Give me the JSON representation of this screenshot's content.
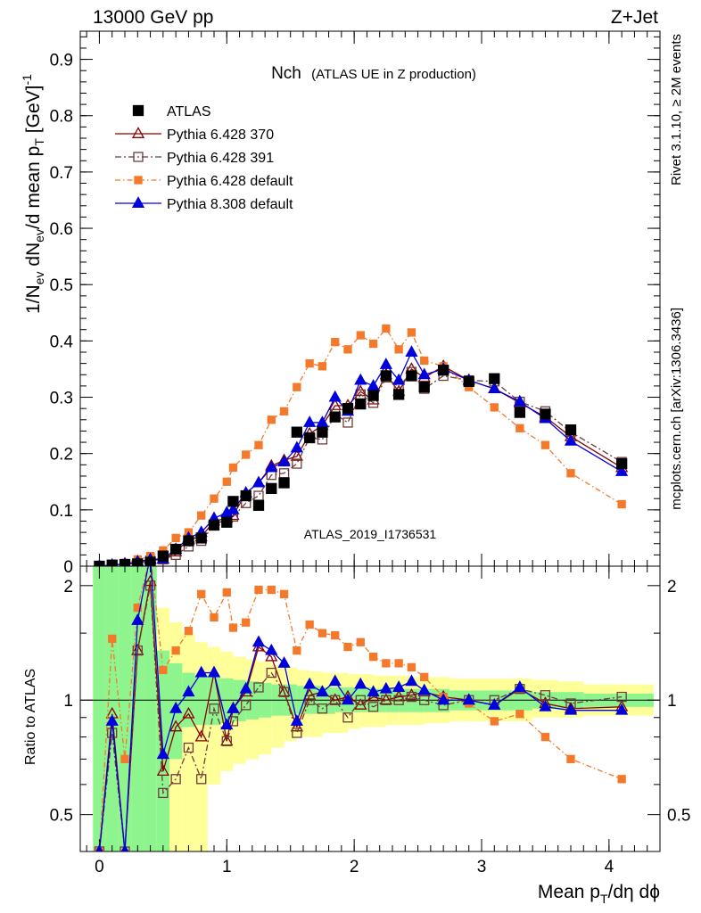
{
  "header": {
    "left": "13000 GeV pp",
    "right": "Z+Jet"
  },
  "side_labels": {
    "rivet": "Rivet 3.1.10, ≥ 2M events",
    "mcplots": "mcplots.cern.ch [arXiv:1306.3436]"
  },
  "colors": {
    "atlas": "#000000",
    "p370": "#8b0000",
    "p391": "#6e3b3b",
    "p6def": "#f4792b",
    "p8def": "#0000dd",
    "band_green": "#8ef58e",
    "band_yellow": "#ffff99",
    "analysis_label": "#999999"
  },
  "chart_data": [
    {
      "type": "line",
      "title": "Nch",
      "subtitle": "(ATLAS UE in Z production)",
      "analysis_label": "ATLAS_2019_I1736531",
      "ylabel": "1/N_ev dN_ev/d mean p_T [GeV]^-1",
      "xlim": [
        -0.15,
        4.4
      ],
      "ylim": [
        0,
        0.95
      ],
      "yticks": [
        0,
        0.1,
        0.2,
        0.3,
        0.4,
        0.5,
        0.6,
        0.7,
        0.8,
        0.9
      ],
      "ytick_labels": [
        "0",
        "0.1",
        "0.2",
        "0.3",
        "0.4",
        "0.5",
        "0.6",
        "0.7",
        "0.8",
        "0.9"
      ],
      "legend_position": "top-left",
      "x": [
        0.0,
        0.1,
        0.2,
        0.3,
        0.4,
        0.5,
        0.6,
        0.7,
        0.8,
        0.9,
        1.0,
        1.05,
        1.15,
        1.25,
        1.35,
        1.45,
        1.55,
        1.65,
        1.75,
        1.85,
        1.95,
        2.05,
        2.15,
        2.25,
        2.35,
        2.45,
        2.55,
        2.7,
        2.9,
        3.1,
        3.3,
        3.5,
        3.7,
        4.1
      ],
      "series": [
        {
          "name": "ATLAS",
          "marker": "filled-square",
          "color": "#000000",
          "values": [
            0.0,
            0.002,
            0.003,
            0.004,
            0.007,
            0.018,
            0.03,
            0.045,
            0.05,
            0.073,
            0.078,
            0.115,
            0.125,
            0.108,
            0.138,
            0.148,
            0.238,
            0.228,
            0.238,
            0.265,
            0.28,
            0.288,
            0.303,
            0.338,
            0.305,
            0.338,
            0.318,
            0.348,
            0.328,
            0.333,
            0.273,
            0.27,
            0.242,
            0.182
          ]
        },
        {
          "name": "Pythia 6.428 370",
          "marker": "open-triangle",
          "color": "#8b0000",
          "values": [
            0.0,
            0.002,
            0.004,
            0.008,
            0.012,
            0.012,
            0.025,
            0.048,
            0.052,
            0.08,
            0.085,
            0.09,
            0.13,
            0.148,
            0.178,
            0.188,
            0.195,
            0.235,
            0.25,
            0.285,
            0.285,
            0.31,
            0.295,
            0.34,
            0.31,
            0.35,
            0.335,
            0.355,
            0.33,
            0.315,
            0.29,
            0.265,
            0.23,
            0.175
          ]
        },
        {
          "name": "Pythia 6.428 391",
          "marker": "open-square",
          "color": "#6e3b3b",
          "values": [
            0.0,
            0.002,
            0.003,
            0.005,
            0.01,
            0.012,
            0.02,
            0.035,
            0.045,
            0.072,
            0.085,
            0.088,
            0.112,
            0.125,
            0.162,
            0.165,
            0.182,
            0.228,
            0.225,
            0.27,
            0.255,
            0.305,
            0.29,
            0.335,
            0.318,
            0.345,
            0.315,
            0.338,
            0.33,
            0.328,
            0.292,
            0.275,
            0.238,
            0.185
          ]
        },
        {
          "name": "Pythia 6.428 default",
          "marker": "filled-square-small",
          "color": "#f4792b",
          "values": [
            0.0,
            0.003,
            0.006,
            0.012,
            0.018,
            0.028,
            0.05,
            0.06,
            0.09,
            0.12,
            0.15,
            0.175,
            0.198,
            0.215,
            0.26,
            0.275,
            0.318,
            0.36,
            0.355,
            0.398,
            0.385,
            0.41,
            0.395,
            0.422,
            0.385,
            0.415,
            0.365,
            0.355,
            0.318,
            0.282,
            0.245,
            0.215,
            0.165,
            0.11
          ]
        },
        {
          "name": "Pythia 8.308 default",
          "marker": "filled-triangle",
          "color": "#0000dd",
          "values": [
            0.0,
            0.002,
            0.004,
            0.008,
            0.012,
            0.013,
            0.03,
            0.05,
            0.06,
            0.085,
            0.095,
            0.1,
            0.13,
            0.148,
            0.175,
            0.185,
            0.21,
            0.255,
            0.255,
            0.3,
            0.275,
            0.33,
            0.32,
            0.358,
            0.33,
            0.38,
            0.34,
            0.35,
            0.33,
            0.315,
            0.292,
            0.262,
            0.222,
            0.168
          ]
        }
      ]
    },
    {
      "type": "line",
      "ylabel": "Ratio to ATLAS",
      "xlabel": "Mean p_T/dη dϕ",
      "scale": "log",
      "xlim": [
        -0.15,
        4.4
      ],
      "ylim": [
        0.4,
        2.25
      ],
      "yticks": [
        0.5,
        1,
        2
      ],
      "ytick_labels": [
        "0.5",
        "1",
        "2"
      ],
      "xticks": [
        0,
        1,
        2,
        3,
        4
      ],
      "xtick_labels": [
        "0",
        "1",
        "2",
        "3",
        "4"
      ],
      "reference_line": 1,
      "x": [
        0.0,
        0.1,
        0.2,
        0.3,
        0.4,
        0.5,
        0.6,
        0.7,
        0.8,
        0.9,
        1.0,
        1.05,
        1.15,
        1.25,
        1.35,
        1.45,
        1.55,
        1.65,
        1.75,
        1.85,
        1.95,
        2.05,
        2.15,
        2.25,
        2.35,
        2.45,
        2.55,
        2.7,
        2.9,
        3.1,
        3.3,
        3.5,
        3.7,
        4.1
      ],
      "band_edges": [
        -0.05,
        0.05,
        0.15,
        0.25,
        0.35,
        0.45,
        0.55,
        0.65,
        0.75,
        0.85,
        0.95,
        1.05,
        1.15,
        1.25,
        1.35,
        1.45,
        1.55,
        1.65,
        1.75,
        1.85,
        1.95,
        2.05,
        2.15,
        2.25,
        2.35,
        2.45,
        2.55,
        2.65,
        2.75,
        3.0,
        3.2,
        3.4,
        3.6,
        3.8,
        4.35
      ],
      "band_green_lo": [
        0.4,
        0.4,
        0.4,
        0.4,
        0.4,
        0.4,
        0.7,
        0.85,
        0.86,
        0.86,
        0.87,
        0.88,
        0.89,
        0.9,
        0.91,
        0.91,
        0.92,
        0.92,
        0.92,
        0.93,
        0.93,
        0.93,
        0.93,
        0.93,
        0.93,
        0.93,
        0.93,
        0.93,
        0.94,
        0.94,
        0.94,
        0.95,
        0.95,
        0.96
      ],
      "band_green_hi": [
        2.4,
        2.4,
        2.4,
        2.4,
        2.4,
        1.35,
        1.25,
        1.18,
        1.16,
        1.15,
        1.14,
        1.13,
        1.12,
        1.11,
        1.1,
        1.1,
        1.09,
        1.09,
        1.08,
        1.08,
        1.08,
        1.08,
        1.07,
        1.07,
        1.07,
        1.07,
        1.07,
        1.07,
        1.06,
        1.06,
        1.06,
        1.05,
        1.05,
        1.04
      ],
      "band_yellow_lo": [
        0.4,
        0.4,
        0.4,
        0.4,
        0.4,
        0.4,
        0.4,
        0.4,
        0.4,
        0.6,
        0.65,
        0.68,
        0.7,
        0.72,
        0.75,
        0.78,
        0.8,
        0.8,
        0.82,
        0.82,
        0.84,
        0.85,
        0.85,
        0.86,
        0.86,
        0.86,
        0.87,
        0.87,
        0.88,
        0.88,
        0.88,
        0.9,
        0.9,
        0.91
      ],
      "band_yellow_hi": [
        2.4,
        2.4,
        2.4,
        2.4,
        2.4,
        1.75,
        1.6,
        1.5,
        1.42,
        1.38,
        1.34,
        1.3,
        1.28,
        1.26,
        1.24,
        1.22,
        1.2,
        1.19,
        1.18,
        1.18,
        1.17,
        1.17,
        1.16,
        1.16,
        1.16,
        1.15,
        1.15,
        1.15,
        1.14,
        1.14,
        1.14,
        1.13,
        1.12,
        1.1
      ],
      "series": [
        {
          "name": "Pythia 6.428 370",
          "values": [
            0.4,
            0.92,
            0.4,
            1.35,
            2.05,
            0.65,
            0.85,
            0.92,
            0.8,
            1.18,
            0.78,
            0.95,
            1.05,
            1.38,
            1.3,
            1.05,
            0.85,
            1.03,
            1.05,
            1.0,
            1.02,
            0.97,
            1.02,
            1.0,
            1.02,
            1.03,
            1.05,
            1.02,
            1.0,
            0.97,
            1.07,
            0.98,
            0.95,
            0.96
          ]
        },
        {
          "name": "Pythia 6.428 391",
          "values": [
            0.4,
            0.82,
            0.4,
            1.35,
            2.0,
            0.57,
            0.62,
            0.75,
            0.62,
            0.95,
            0.78,
            0.88,
            0.97,
            1.08,
            1.18,
            1.05,
            0.82,
            1.0,
            0.95,
            1.0,
            0.9,
            1.0,
            0.96,
            1.0,
            1.0,
            1.02,
            1.0,
            0.97,
            1.0,
            1.0,
            1.07,
            1.03,
            0.98,
            1.02
          ]
        },
        {
          "name": "Pythia 6.428 default",
          "values": [
            0.4,
            1.45,
            0.7,
            1.75,
            2.4,
            1.2,
            1.35,
            1.52,
            1.9,
            1.65,
            1.92,
            1.55,
            1.6,
            1.95,
            1.95,
            1.9,
            1.35,
            1.58,
            1.5,
            1.48,
            1.38,
            1.42,
            1.3,
            1.25,
            1.25,
            1.22,
            1.15,
            1.02,
            0.98,
            0.88,
            0.92,
            0.8,
            0.7,
            0.62
          ]
        },
        {
          "name": "Pythia 8.308 default",
          "values": [
            0.4,
            0.88,
            0.4,
            1.62,
            2.4,
            0.72,
            0.95,
            1.05,
            1.18,
            1.18,
            0.86,
            0.95,
            1.07,
            1.42,
            1.35,
            1.25,
            0.88,
            1.1,
            1.05,
            1.12,
            1.0,
            1.1,
            1.05,
            1.07,
            1.08,
            1.12,
            1.06,
            1.0,
            1.0,
            0.97,
            1.08,
            0.96,
            0.94,
            0.94
          ]
        }
      ]
    }
  ]
}
